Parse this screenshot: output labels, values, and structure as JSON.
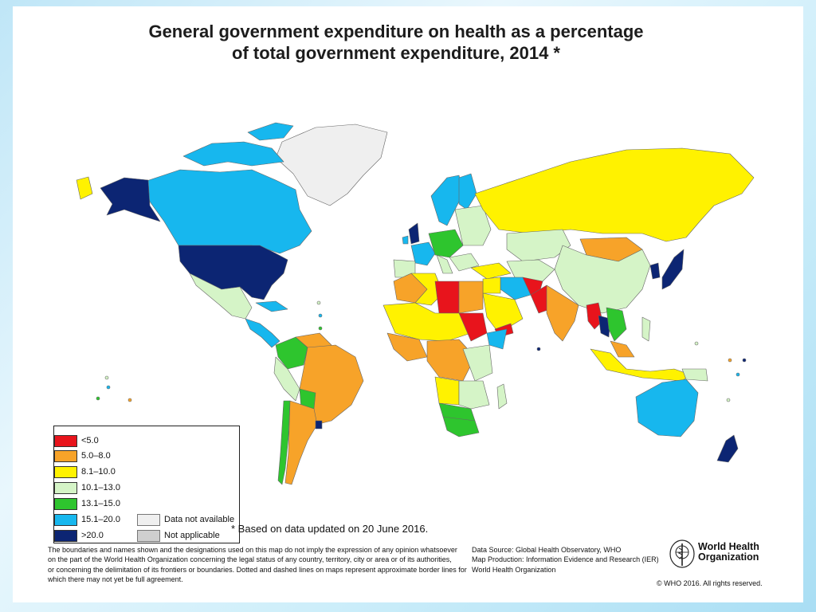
{
  "title": {
    "line1": "General government expenditure on health as a percentage",
    "line2": "of total government expenditure, 2014 *"
  },
  "colors": {
    "lt5": "#e8141c",
    "r5_8": "#f7a329",
    "r8_10": "#fff200",
    "r10_13": "#d5f4c7",
    "r13_15": "#2ec52e",
    "r15_20": "#17b7ee",
    "gt20": "#0c2573",
    "not_available": "#efefef",
    "not_applicable": "#cfcfcf",
    "ocean": "#ffffff"
  },
  "legend": {
    "items": [
      {
        "label": "<5.0",
        "color": "#e8141c"
      },
      {
        "label": "5.0–8.0",
        "color": "#f7a329"
      },
      {
        "label": "8.1–10.0",
        "color": "#fff200"
      },
      {
        "label": "10.1–13.0",
        "color": "#d5f4c7"
      },
      {
        "label": "13.1–15.0",
        "color": "#2ec52e"
      },
      {
        "label": "15.1–20.0",
        "color": "#17b7ee"
      },
      {
        "label": ">20.0",
        "color": "#0c2573"
      }
    ],
    "extra": [
      {
        "label": "Data not available",
        "color": "#efefef"
      },
      {
        "label": "Not applicable",
        "color": "#cfcfcf"
      }
    ]
  },
  "note": "* Based on data updated on 20 June 2016.",
  "disclaimer": [
    "The boundaries and names shown and the designations used on this map do not imply the expression of any opinion whatsoever",
    "on the part of the World Health Organization concerning the legal status of any country, territory, city or area or of its authorities,",
    "or concerning the delimitation of its frontiers or boundaries.  Dotted and dashed lines on maps represent approximate border lines for",
    "which there may not yet be full agreement."
  ],
  "source": [
    "Data Source: Global Health Observatory, WHO",
    "Map Production: Information Evidence and Research (IER)",
    "World Health Organization"
  ],
  "who": {
    "line1": "World Health",
    "line2": "Organization"
  },
  "copyright": "© WHO 2016. All rights reserved."
}
